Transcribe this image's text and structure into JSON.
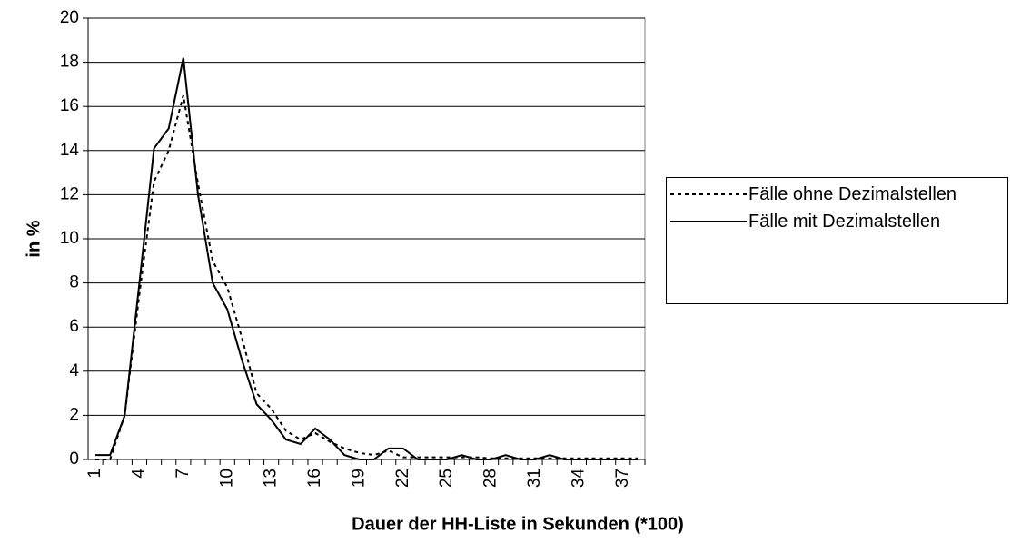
{
  "chart_data": {
    "type": "line",
    "x_label": "Dauer der HH-Liste in Sekunden (*100)",
    "y_label": "in %",
    "categories": [
      1,
      null,
      null,
      4,
      null,
      null,
      7,
      null,
      null,
      10,
      null,
      null,
      13,
      null,
      null,
      16,
      null,
      null,
      19,
      null,
      null,
      22,
      null,
      null,
      25,
      null,
      null,
      28,
      null,
      null,
      31,
      null,
      null,
      34,
      null,
      null,
      37,
      null
    ],
    "series": [
      {
        "name": "Fälle ohne Dezimalstellen",
        "color": "#000000",
        "dash": "4,4",
        "values": [
          0,
          0,
          2,
          7.5,
          12.6,
          14,
          16.5,
          12.5,
          9,
          7.8,
          5.5,
          3,
          2.3,
          1.3,
          0.9,
          1.2,
          0.8,
          0.5,
          0.3,
          0.2,
          0.4,
          0.1,
          0.1,
          0.1,
          0.1,
          0.1,
          0.1,
          0.05,
          0.05,
          0.05,
          0.05,
          0.05,
          0.05,
          0.05,
          0.05,
          0.05,
          0.05,
          0.05
        ]
      },
      {
        "name": "Fälle mit Dezimalstellen",
        "color": "#000000",
        "values": [
          0.2,
          0.2,
          2,
          8,
          14.1,
          15,
          18.2,
          12,
          8,
          6.8,
          4.5,
          2.5,
          1.8,
          0.9,
          0.7,
          1.4,
          0.9,
          0.2,
          0,
          0,
          0.5,
          0.5,
          0,
          0,
          0,
          0.2,
          0,
          0,
          0.2,
          0,
          0,
          0.2,
          0,
          0,
          0,
          0,
          0,
          0
        ]
      }
    ],
    "ylim": [
      0,
      20
    ],
    "yticks": [
      0,
      2,
      4,
      6,
      8,
      10,
      12,
      14,
      16,
      18,
      20
    ],
    "grid": true,
    "legend": "right"
  }
}
